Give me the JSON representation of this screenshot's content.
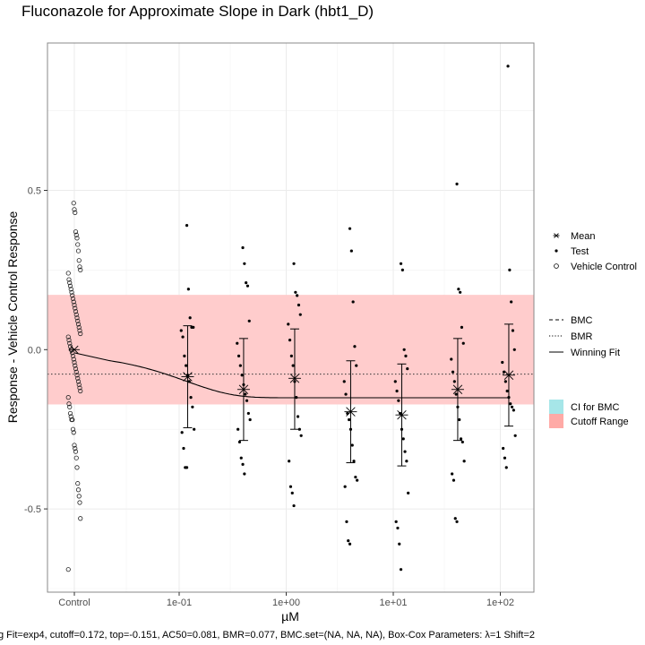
{
  "chart_data": {
    "type": "scatter",
    "title": "Fluconazole for Approximate Slope in Dark (hbt1_D)",
    "xlabel": "µM",
    "ylabel": "Response - Vehicle Control Response",
    "x_scale": "log10",
    "x_tick_labels": [
      "Control",
      "1e-01",
      "1e+00",
      "1e+01",
      "1e+02"
    ],
    "x_tick_values": [
      null,
      0.1,
      1,
      10,
      100
    ],
    "y_ticks": [
      -0.5,
      0.0,
      0.5
    ],
    "y_tick_labels": [
      "-0.5",
      "0.0",
      "0.5"
    ],
    "ylim": [
      -0.76,
      0.96
    ],
    "grid": true,
    "cutoff_range": [
      -0.172,
      0.172
    ],
    "bmr_line": -0.077,
    "winning_fit": {
      "model": "exp4",
      "top": -0.151,
      "ac50": 0.081,
      "control_level": -0.01
    },
    "vehicle_control": [
      -0.69,
      -0.53,
      -0.48,
      -0.46,
      -0.44,
      -0.42,
      -0.37,
      -0.34,
      -0.32,
      -0.31,
      -0.3,
      -0.26,
      -0.25,
      -0.22,
      -0.22,
      -0.21,
      -0.2,
      -0.18,
      -0.17,
      -0.15,
      -0.13,
      -0.12,
      -0.11,
      -0.1,
      -0.09,
      -0.08,
      -0.07,
      -0.06,
      -0.05,
      -0.04,
      -0.03,
      -0.02,
      -0.01,
      0.0,
      0.0,
      0.01,
      0.02,
      0.03,
      0.04,
      0.05,
      0.06,
      0.07,
      0.08,
      0.09,
      0.1,
      0.11,
      0.12,
      0.13,
      0.14,
      0.15,
      0.16,
      0.17,
      0.18,
      0.19,
      0.2,
      0.21,
      0.22,
      0.24,
      0.25,
      0.26,
      0.28,
      0.31,
      0.33,
      0.35,
      0.36,
      0.37,
      0.43,
      0.44,
      0.46
    ],
    "test_groups": [
      {
        "dose": 0.12,
        "mean": -0.085,
        "err_low": -0.245,
        "err_high": 0.075,
        "values": [
          0.39,
          0.19,
          0.1,
          0.07,
          0.07,
          0.06,
          0.04,
          -0.02,
          -0.05,
          -0.08,
          -0.1,
          -0.15,
          -0.18,
          -0.25,
          -0.26,
          -0.31,
          -0.37,
          -0.37
        ]
      },
      {
        "dose": 0.4,
        "mean": -0.125,
        "err_low": -0.285,
        "err_high": 0.035,
        "values": [
          0.32,
          0.27,
          0.21,
          0.2,
          0.09,
          0.02,
          -0.02,
          -0.05,
          -0.08,
          -0.11,
          -0.14,
          -0.16,
          -0.2,
          -0.22,
          -0.25,
          -0.29,
          -0.34,
          -0.36,
          -0.39
        ]
      },
      {
        "dose": 1.2,
        "mean": -0.09,
        "err_low": -0.25,
        "err_high": 0.065,
        "values": [
          0.27,
          0.18,
          0.17,
          0.14,
          0.11,
          0.08,
          0.03,
          -0.02,
          -0.05,
          -0.1,
          -0.15,
          -0.21,
          -0.25,
          -0.27,
          -0.35,
          -0.43,
          -0.45,
          -0.49
        ]
      },
      {
        "dose": 4.0,
        "mean": -0.195,
        "err_low": -0.355,
        "err_high": -0.035,
        "values": [
          0.38,
          0.31,
          0.15,
          0.01,
          -0.05,
          -0.1,
          -0.14,
          -0.2,
          -0.22,
          -0.25,
          -0.3,
          -0.35,
          -0.4,
          -0.41,
          -0.43,
          -0.54,
          -0.6,
          -0.61
        ]
      },
      {
        "dose": 12.0,
        "mean": -0.205,
        "err_low": -0.365,
        "err_high": -0.045,
        "values": [
          0.27,
          0.25,
          0.0,
          -0.02,
          -0.06,
          -0.1,
          -0.13,
          -0.16,
          -0.2,
          -0.25,
          -0.28,
          -0.32,
          -0.35,
          -0.45,
          -0.54,
          -0.56,
          -0.61,
          -0.69
        ]
      },
      {
        "dose": 40.0,
        "mean": -0.125,
        "err_low": -0.285,
        "err_high": 0.035,
        "values": [
          0.52,
          0.19,
          0.18,
          0.07,
          0.02,
          -0.03,
          -0.07,
          -0.1,
          -0.14,
          -0.18,
          -0.22,
          -0.28,
          -0.29,
          -0.35,
          -0.39,
          -0.41,
          -0.53,
          -0.54
        ]
      },
      {
        "dose": 120.0,
        "mean": -0.08,
        "err_low": -0.24,
        "err_high": 0.08,
        "values": [
          0.89,
          0.25,
          0.15,
          0.06,
          0.0,
          -0.04,
          -0.07,
          -0.1,
          -0.13,
          -0.15,
          -0.17,
          -0.18,
          -0.19,
          -0.27,
          -0.31,
          -0.34,
          -0.37
        ]
      }
    ],
    "colors": {
      "cutoff_range": "#ffcccc",
      "ci_bmc": "#a6e6e8",
      "cutoff_legend": "#ffaaa6",
      "grid": "#ebebeb",
      "panel_border": "#888888"
    },
    "legend": {
      "position": "right",
      "group1": [
        {
          "symbol": "asterisk",
          "label": "Mean"
        },
        {
          "symbol": "small-dot",
          "label": "Test"
        },
        {
          "symbol": "open-circle",
          "label": "Vehicle Control"
        }
      ],
      "group2": [
        {
          "symbol": "dashed-line",
          "label": "BMC"
        },
        {
          "symbol": "dotted-line",
          "label": "BMR"
        },
        {
          "symbol": "solid-line",
          "label": "Winning Fit"
        }
      ],
      "group3": [
        {
          "symbol": "cyan-box",
          "label": "CI for BMC"
        },
        {
          "symbol": "red-box",
          "label": "Cutoff Range"
        }
      ]
    },
    "caption": "g Fit=exp4, cutoff=0.172, top=-0.151, AC50=0.081, BMR=0.077, BMC.set=(NA, NA, NA), Box-Cox Parameters: λ=1 Shift=2"
  }
}
